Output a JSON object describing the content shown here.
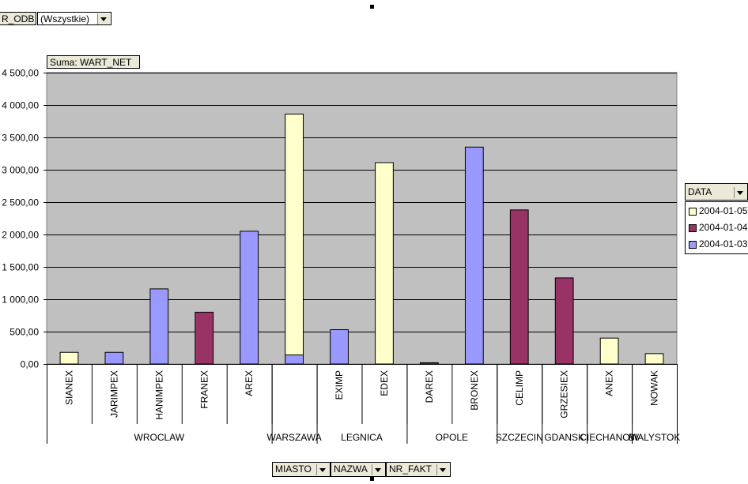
{
  "page_filter": {
    "field_label": "R_ODB",
    "value": "(Wszystkie)"
  },
  "data_field_label": "Suma: WART_NET",
  "legend": {
    "field_label": "DATA"
  },
  "bottom_fields": [
    "MIASTO",
    "NAZWA",
    "NR_FAKT"
  ],
  "colors": {
    "plot_bg": "#c0c0c0",
    "2004-01-05": "#ffffcc",
    "2004-01-04": "#993366",
    "2004-01-03": "#9999ff"
  },
  "chart_data": {
    "type": "bar",
    "stacked": true,
    "ylim": [
      0,
      4500
    ],
    "yticks": [
      0,
      500,
      1000,
      1500,
      2000,
      2500,
      3000,
      3500,
      4000,
      4500
    ],
    "ytick_labels": [
      "0,00",
      "500,00",
      "1 000,00",
      "1 500,00",
      "2 000,00",
      "2 500,00",
      "3 000,00",
      "3 500,00",
      "4 000,00",
      "4 500,00"
    ],
    "grid": true,
    "legend_position": "right",
    "categories": [
      "SIANEX",
      "JARIMPEX",
      "HANIMPEX",
      "FRANEX",
      "AREX",
      "",
      "EXIMP",
      "EDEX",
      "DAREX",
      "BRONEX",
      "CELIMP",
      "GRZESIEX",
      "ANEX",
      "NOWAK"
    ],
    "groups": [
      {
        "label": "WROCLAW",
        "count": 5
      },
      {
        "label": "WARSZAWA",
        "count": 1
      },
      {
        "label": "LEGNICA",
        "count": 2
      },
      {
        "label": "OPOLE",
        "count": 2
      },
      {
        "label": "SZCZECIN",
        "count": 1
      },
      {
        "label": "GDANSK",
        "count": 1
      },
      {
        "label": "CIECHANOW",
        "count": 1
      },
      {
        "label": "BIALYSTOK",
        "count": 1
      }
    ],
    "series": [
      {
        "name": "2004-01-03",
        "values": [
          0,
          180,
          1160,
          0,
          2050,
          140,
          530,
          0,
          0,
          3350,
          0,
          0,
          0,
          0
        ]
      },
      {
        "name": "2004-01-04",
        "values": [
          0,
          0,
          0,
          800,
          0,
          0,
          0,
          0,
          20,
          0,
          2380,
          1330,
          0,
          0
        ]
      },
      {
        "name": "2004-01-05",
        "values": [
          180,
          0,
          0,
          0,
          0,
          3720,
          0,
          3110,
          0,
          0,
          0,
          0,
          400,
          160
        ]
      }
    ],
    "legend_order": [
      "2004-01-05",
      "2004-01-04",
      "2004-01-03"
    ]
  }
}
